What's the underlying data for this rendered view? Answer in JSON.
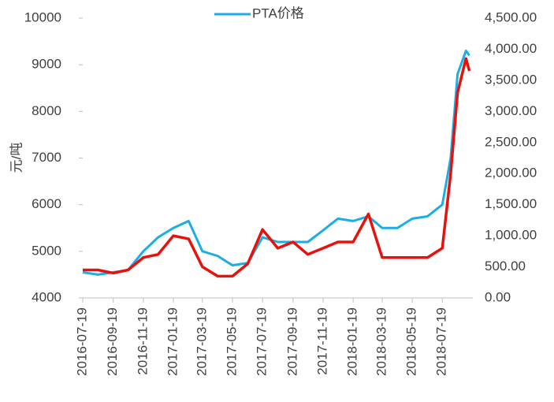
{
  "chart_data": {
    "type": "line",
    "ylabel": "元/吨",
    "x": [
      "2016-07-19",
      "2016-08-19",
      "2016-09-19",
      "2016-10-19",
      "2016-11-19",
      "2016-12-19",
      "2017-01-19",
      "2017-02-19",
      "2017-03-19",
      "2017-04-19",
      "2017-05-19",
      "2017-06-19",
      "2017-07-19",
      "2017-08-19",
      "2017-09-19",
      "2017-10-19",
      "2017-11-19",
      "2017-12-19",
      "2018-01-19",
      "2018-02-19",
      "2018-03-19",
      "2018-04-19",
      "2018-05-19",
      "2018-06-19",
      "2018-07-19",
      "2018-08-05",
      "2018-08-19",
      "2018-09-05",
      "2018-09-12"
    ],
    "xlim": [
      "2016-07-19",
      "2018-09-19"
    ],
    "xticks": [
      "2016-07-19",
      "2016-09-19",
      "2016-11-19",
      "2017-01-19",
      "2017-03-19",
      "2017-05-19",
      "2017-07-19",
      "2017-09-19",
      "2017-11-19",
      "2018-01-19",
      "2018-03-19",
      "2018-05-19",
      "2018-07-19"
    ],
    "ylim": [
      4000,
      10000
    ],
    "yticks": [
      4000,
      5000,
      6000,
      7000,
      8000,
      9000,
      10000
    ],
    "y2lim": [
      0,
      4500
    ],
    "y2ticks": [
      {
        "value": 0,
        "label": "0.00"
      },
      {
        "value": 500,
        "label": "500.00"
      },
      {
        "value": 1000,
        "label": "1,000.00"
      },
      {
        "value": 1500,
        "label": "1,500.00"
      },
      {
        "value": 2000,
        "label": "2,000.00"
      },
      {
        "value": 2500,
        "label": "2,500.00"
      },
      {
        "value": 3000,
        "label": "3,000.00"
      },
      {
        "value": 3500,
        "label": "3,500.00"
      },
      {
        "value": 4000,
        "label": "4,000.00"
      },
      {
        "value": 4500,
        "label": "4,500.00"
      }
    ],
    "legend": "top",
    "series": [
      {
        "name": "PTA价格",
        "color": "#1aaee5",
        "values": [
          4550,
          4500,
          4550,
          4600,
          5000,
          5300,
          5500,
          5650,
          5000,
          4900,
          4700,
          4750,
          5300,
          5200,
          5200,
          5200,
          5450,
          5700,
          5650,
          5750,
          5500,
          5500,
          5700,
          5750,
          6000,
          7000,
          8800,
          9300,
          9200
        ]
      },
      {
        "color": "#e8120c",
        "axis": "y2",
        "values": [
          450,
          450,
          400,
          450,
          650,
          700,
          1000,
          950,
          500,
          350,
          350,
          550,
          1100,
          800,
          900,
          700,
          800,
          900,
          900,
          1350,
          650,
          650,
          650,
          650,
          800,
          2000,
          3300,
          3850,
          3650
        ]
      }
    ]
  }
}
